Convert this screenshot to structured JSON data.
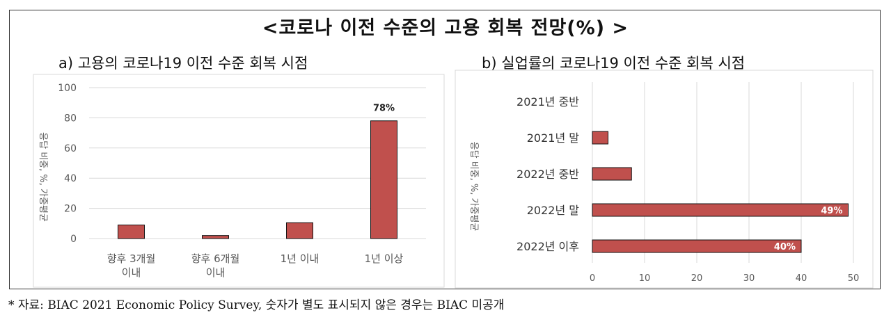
{
  "header": {
    "title": "<코로나 이전 수준의 고용 회복 전망(%) >"
  },
  "footer": {
    "note": "* 자료: BIAC 2021 Economic Policy Survey, 숫자가 별도 표시되지 않은 경우는 BIAC 미공개"
  },
  "colors": {
    "bar_fill": "#c0504d",
    "bar_stroke": "#111111",
    "grid": "#d9d9d9",
    "axis_text": "#595959"
  },
  "chart_data": [
    {
      "type": "bar",
      "title": "a) 고용의 코로나19 이전 수준 회복 시점",
      "ylabel": "응답 비중, %, 가중평균",
      "ylim": [
        0,
        100
      ],
      "yticks": [
        0,
        20,
        40,
        60,
        80,
        100
      ],
      "grid": true,
      "categories": [
        [
          "향후 3개월",
          "이내"
        ],
        [
          "향후 6개월",
          "이내"
        ],
        [
          "1년 이내"
        ],
        [
          "1년 이상"
        ]
      ],
      "values": [
        9,
        2,
        10.5,
        78
      ],
      "data_labels": [
        "",
        "",
        "",
        "78%"
      ]
    },
    {
      "type": "bar",
      "orientation": "horizontal",
      "title": "b) 실업률의 코로나19 이전 수준 회복 시점",
      "ylabel": "응답 비중, %, 가중평균",
      "xlim": [
        0,
        50
      ],
      "xticks": [
        0,
        10,
        20,
        30,
        40,
        50
      ],
      "grid": true,
      "categories": [
        "2021년 중반",
        "2021년 말",
        "2022년 중반",
        "2022년 말",
        "2022년 이후"
      ],
      "values": [
        0,
        3,
        7.5,
        49,
        40
      ],
      "data_labels": [
        "",
        "",
        "",
        "49%",
        "40%"
      ]
    }
  ]
}
